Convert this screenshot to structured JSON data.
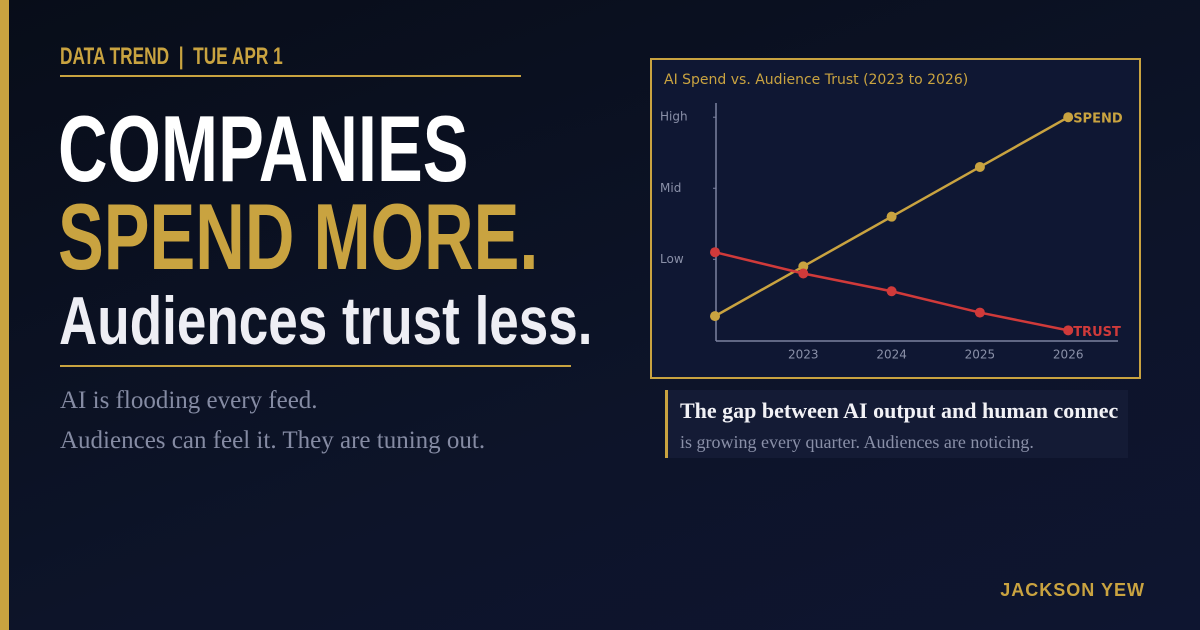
{
  "header": {
    "kicker": "DATA TREND  |  TUE APR 1"
  },
  "headline": {
    "line1": "COMPANIES",
    "line2": "SPEND MORE.",
    "line3": "Audiences trust less."
  },
  "subtext": {
    "line1": "AI is flooding every feed.",
    "line2": "Audiences can feel it. They are tuning out."
  },
  "quote": {
    "line1": "The gap between AI output and human connec",
    "line2": "is growing every quarter. Audiences are noticing."
  },
  "author": "JACKSON YEW",
  "chart_data": {
    "type": "line",
    "title": "AI Spend vs. Audience Trust  (2023 to 2026)",
    "categories": [
      null,
      "2023",
      "2024",
      "2025",
      "2026"
    ],
    "series": [
      {
        "name": "SPEND",
        "color": "#c9a340",
        "values": [
          0.2,
          0.9,
          1.6,
          2.3,
          3.0
        ]
      },
      {
        "name": "TRUST",
        "color": "#d03a3a",
        "values": [
          1.1,
          0.8,
          0.55,
          0.25,
          0
        ]
      }
    ],
    "ylim": [
      -0.15,
      3.2
    ],
    "yticks": [
      {
        "value": 1,
        "label": "Low"
      },
      {
        "value": 2,
        "label": "Mid"
      },
      {
        "value": 3,
        "label": "High"
      }
    ],
    "grid": false
  }
}
